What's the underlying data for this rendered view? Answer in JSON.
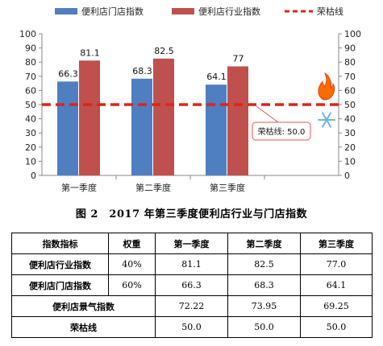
{
  "chart_data": {
    "type": "bar",
    "categories": [
      "第一季度",
      "第二季度",
      "第三季度"
    ],
    "series": [
      {
        "name": "便利店门店指数",
        "values": [
          66.3,
          68.3,
          64.1
        ],
        "color": "#4f7fc0"
      },
      {
        "name": "便利店行业指数",
        "values": [
          81.1,
          82.5,
          77
        ],
        "color": "#c0504d"
      }
    ],
    "reference_line": {
      "name": "荣枯线",
      "value": 50,
      "color": "#d9261c",
      "style": "dashed"
    },
    "annotation": {
      "text": "荣枯线: 50.0"
    },
    "ylim": [
      0,
      100
    ],
    "yticks": [
      0,
      10,
      20,
      30,
      40,
      50,
      60,
      70,
      80,
      90,
      100
    ],
    "secondary_y": true,
    "legend": "top",
    "grid": false,
    "data_labels": [
      [
        "66.3",
        "81.1"
      ],
      [
        "68.3",
        "82.5"
      ],
      [
        "64.1",
        "77"
      ]
    ],
    "decorations": [
      "fire-icon",
      "snowflake-icon"
    ]
  },
  "caption": "图 2　2017 年第三季度便利店行业与门店指数",
  "table": {
    "headers": [
      "指数指标",
      "权重",
      "第一季度",
      "第二季度",
      "第三季度"
    ],
    "rows": [
      {
        "label": "便利店行业指数",
        "weight": "40%",
        "values": [
          "81.1",
          "82.5",
          "77.0"
        ]
      },
      {
        "label": "便利店门店指数",
        "weight": "60%",
        "values": [
          "66.3",
          "68.3",
          "64.1"
        ]
      }
    ],
    "merged_rows": [
      {
        "label": "便利店景气指数",
        "values": [
          "72.22",
          "73.95",
          "69.25"
        ]
      },
      {
        "label": "荣枯线",
        "values": [
          "50.0",
          "50.0",
          "50.0"
        ]
      }
    ]
  }
}
